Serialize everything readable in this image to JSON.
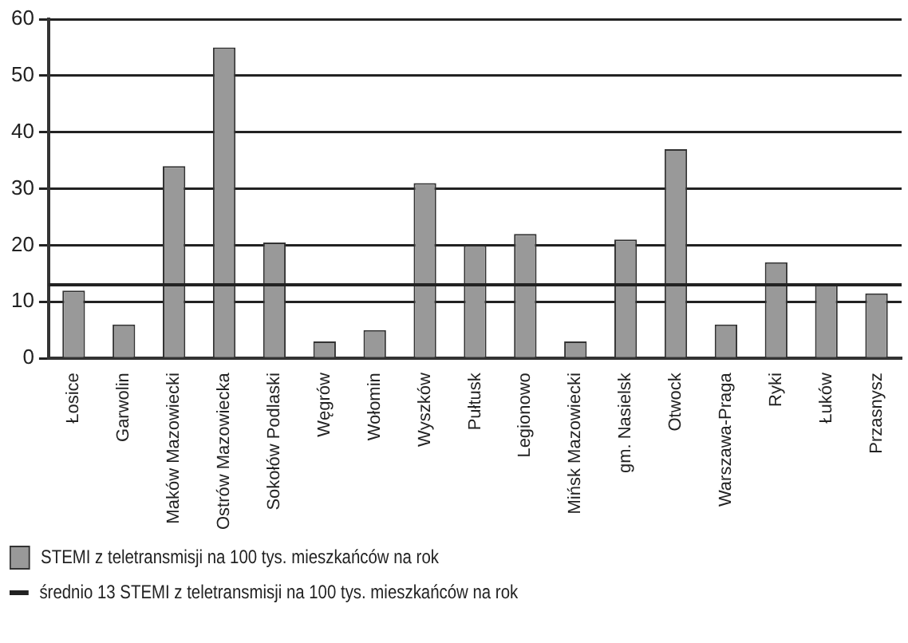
{
  "chart_data": {
    "type": "bar",
    "categories": [
      "Łosice",
      "Garwolin",
      "Maków Mazowiecki",
      "Ostrów Mazowiecka",
      "Sokołów Podlaski",
      "Węgrów",
      "Wołomin",
      "Wyszków",
      "Pułtusk",
      "Legionowo",
      "Mińsk Mazowiecki",
      "gm. Nasielsk",
      "Otwock",
      "Warszawa-Praga",
      "Ryki",
      "Łuków",
      "Przasnysz"
    ],
    "series": [
      {
        "name": "STEMI z teletransmisji na 100 tys. mieszkańców na rok",
        "color": "#999999",
        "values": [
          12,
          6,
          34,
          55,
          20.5,
          3,
          5,
          31,
          20,
          22,
          3,
          21,
          37,
          6,
          17,
          13,
          11.5
        ]
      }
    ],
    "ylim": [
      0,
      60
    ],
    "yticks": [
      0,
      10,
      20,
      30,
      40,
      50,
      60
    ],
    "grid": "y",
    "legend": "bottom",
    "ref_lines": [
      {
        "axis": "y",
        "value": 13,
        "label": "średnio 13 STEMI z teletransmisji na 100 tys. mieszkańców na rok",
        "color": "#222222"
      }
    ]
  }
}
